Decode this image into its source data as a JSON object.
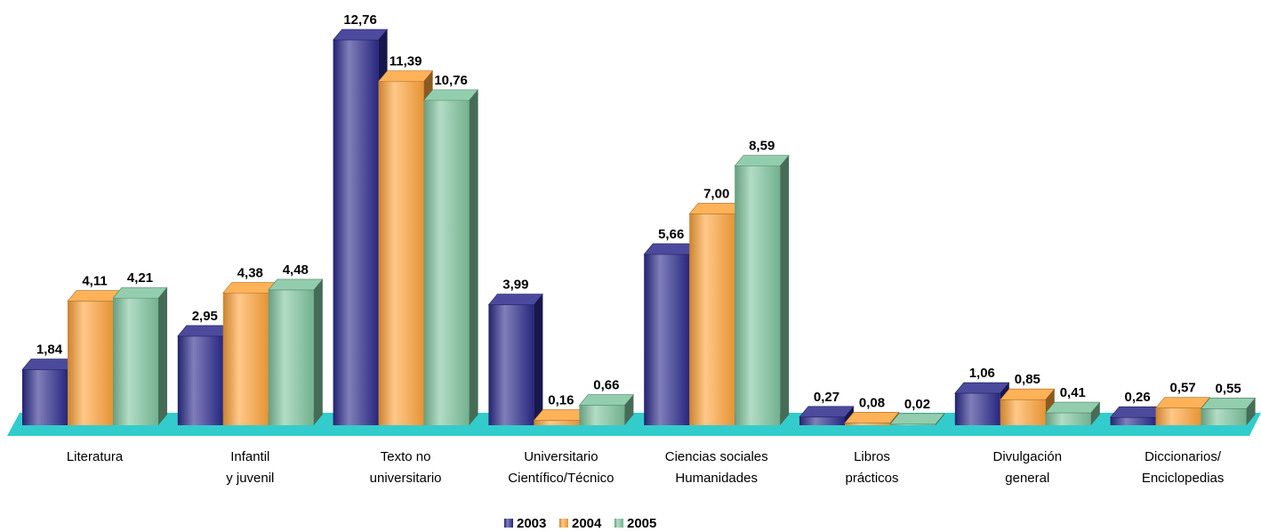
{
  "chart_data": {
    "type": "bar",
    "categories": [
      [
        "Literatura"
      ],
      [
        "Infantil",
        "y juvenil"
      ],
      [
        "Texto no",
        "universitario"
      ],
      [
        "Universitario",
        "Científico/Técnico"
      ],
      [
        "Ciencias sociales",
        "Humanidades"
      ],
      [
        "Libros",
        "prácticos"
      ],
      [
        "Divulgación",
        "general"
      ],
      [
        "Diccionarios/",
        "Enciclopedias"
      ]
    ],
    "series": [
      {
        "name": "2003",
        "color": "#2b2a8c",
        "values": [
          1.84,
          2.95,
          12.76,
          3.99,
          5.66,
          0.27,
          1.06,
          0.26
        ],
        "labels": [
          "1,84",
          "2,95",
          "12,76",
          "3,99",
          "5,66",
          "0,27",
          "1,06",
          "0,26"
        ]
      },
      {
        "name": "2004",
        "color": "#ffa43a",
        "values": [
          4.11,
          4.38,
          11.39,
          0.16,
          7.0,
          0.08,
          0.85,
          0.57
        ],
        "labels": [
          "4,11",
          "4,38",
          "11,39",
          "0,16",
          "7,00",
          "0,08",
          "0,85",
          "0,57"
        ]
      },
      {
        "name": "2005",
        "color": "#7fc59f",
        "values": [
          4.21,
          4.48,
          10.76,
          0.66,
          8.59,
          0.02,
          0.41,
          0.55
        ],
        "labels": [
          "4,21",
          "4,48",
          "10,76",
          "0,66",
          "8,59",
          "0,02",
          "0,41",
          "0,55"
        ]
      }
    ],
    "floor_color": "#33cccc",
    "legend_position": "bottom-center",
    "grid": false,
    "ylim": [
      0,
      13
    ]
  }
}
